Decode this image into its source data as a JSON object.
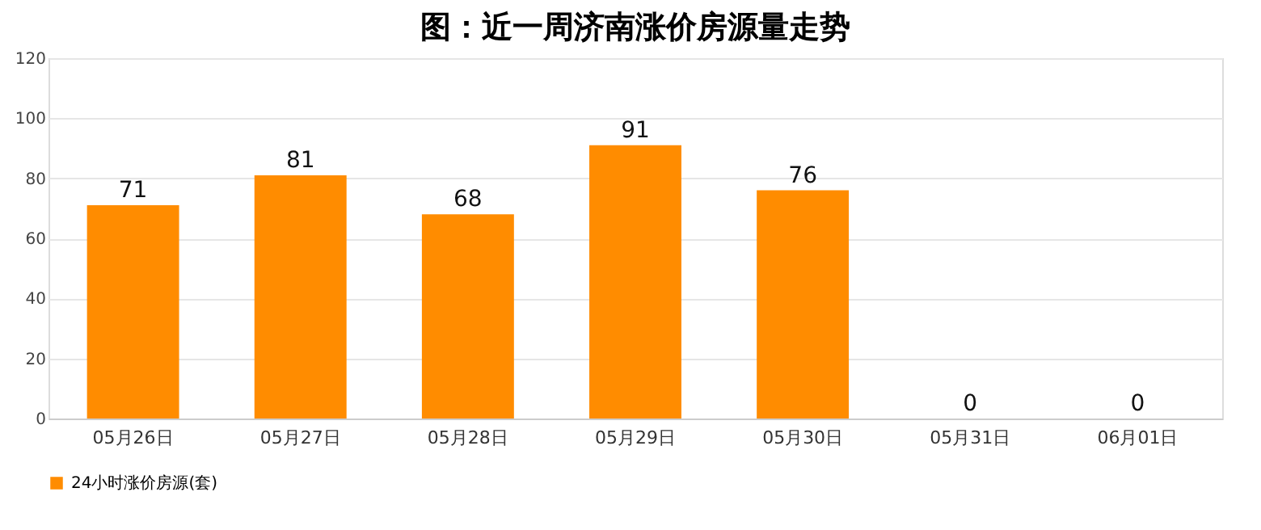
{
  "chart_data": {
    "type": "bar",
    "title": "图：近一周济南涨价房源量走势",
    "categories": [
      "05月26日",
      "05月27日",
      "05月28日",
      "05月29日",
      "05月30日",
      "05月31日",
      "06月01日"
    ],
    "series": [
      {
        "name": "24小时涨价房源(套)",
        "color": "#ff8c00",
        "values": [
          71,
          81,
          68,
          91,
          76,
          0,
          0
        ]
      }
    ],
    "ylim": [
      0,
      120
    ],
    "yticks": [
      0,
      20,
      40,
      60,
      80,
      100,
      120
    ],
    "grid": "y",
    "legend": "bottom",
    "data_labels": true
  }
}
